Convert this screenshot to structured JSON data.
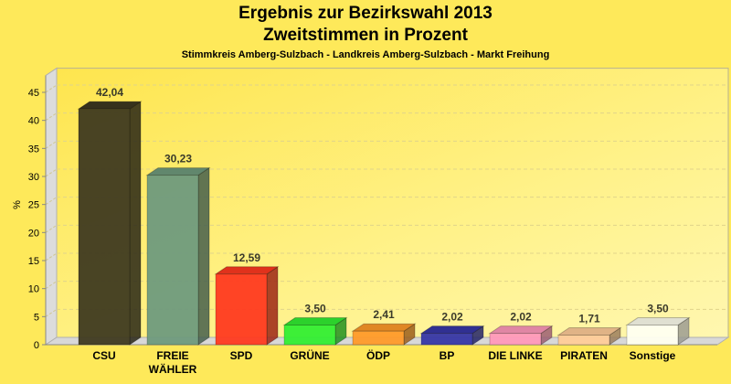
{
  "chart_data": {
    "type": "bar",
    "title": "Ergebnis zur Bezirkswahl 2013",
    "subtitle": "Zweitstimmen in Prozent",
    "caption": "Stimmkreis Amberg-Sulzbach - Landkreis Amberg-Sulzbach - Markt Freihung",
    "ylabel": "%",
    "xlabel": "",
    "ylim": [
      0,
      48
    ],
    "yticks": [
      "0",
      "5",
      "10",
      "15",
      "20",
      "25",
      "30",
      "35",
      "40",
      "45"
    ],
    "grid": true,
    "categories": [
      "CSU",
      "FREIE WÄHLER",
      "SPD",
      "GRÜNE",
      "ÖDP",
      "BP",
      "DIE LINKE",
      "PIRATEN",
      "Sonstige"
    ],
    "category_lines": [
      [
        "CSU"
      ],
      [
        "FREIE",
        "WÄHLER"
      ],
      [
        "SPD"
      ],
      [
        "GRÜNE"
      ],
      [
        "ÖDP"
      ],
      [
        "BP"
      ],
      [
        "DIE LINKE"
      ],
      [
        "PIRATEN"
      ],
      [
        "Sonstige"
      ]
    ],
    "values": [
      42.04,
      30.23,
      12.59,
      3.5,
      2.41,
      2.02,
      2.02,
      1.71,
      3.5
    ],
    "labels": [
      "42,04",
      "30,23",
      "12,59",
      "3,50",
      "2,41",
      "2,02",
      "2,02",
      "1,71",
      "3,50"
    ],
    "colors": [
      "#3f3a20",
      "#6f9a7d",
      "#ff3a20",
      "#33ee33",
      "#ff9a2a",
      "#3737a7",
      "#ff99bb",
      "#ffcc99",
      "#fffff0"
    ]
  }
}
